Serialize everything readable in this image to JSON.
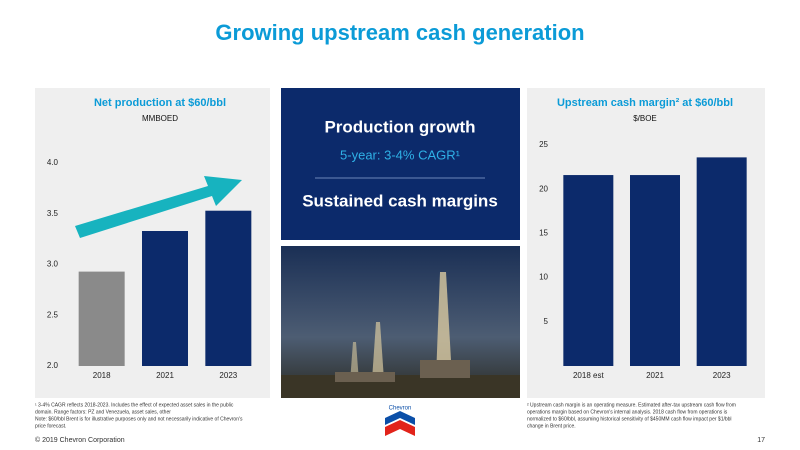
{
  "title": "Growing upstream cash generation",
  "chart_data": [
    {
      "type": "bar",
      "title": "Net production at $60/bbl",
      "subtitle": "MMBOED",
      "categories": [
        "2018",
        "2021",
        "2023"
      ],
      "values": [
        2.93,
        3.33,
        3.53
      ],
      "colors": [
        "#8a8a8a",
        "#0c2a6b",
        "#0c2a6b"
      ],
      "ylim": [
        2.0,
        4.0
      ],
      "yticks": [
        {
          "value": 2,
          "label": "2.0"
        },
        2.5,
        {
          "value": 3,
          "label": "3.0"
        },
        3.5,
        {
          "value": 4,
          "label": "4.0"
        }
      ]
    },
    {
      "type": "bar",
      "title": "Upstream cash margin² at $60/bbl",
      "subtitle": "$/BOE",
      "categories": [
        "2018 est",
        "2021",
        "2023"
      ],
      "values": [
        21.6,
        21.6,
        23.6
      ],
      "colors": [
        "#0c2a6b",
        "#0c2a6b",
        "#0c2a6b"
      ],
      "ylim": [
        0,
        25
      ],
      "yticks": [
        5,
        10,
        15,
        20,
        25
      ]
    }
  ],
  "center_panel": {
    "heading": "Production growth",
    "detail": "5-year: 3-4% CAGR¹",
    "heading2": "Sustained cash margins"
  },
  "footnotes_left": [
    "¹ 3-4% CAGR reflects 2018-2023.  Includes the effect of expected asset sales in the public",
    "domain.  Range factors: PZ and Venezuela, asset sales, other",
    "Note: $60/bbl Brent is for illustrative purposes only and not necessarily indicative of Chevron's",
    "price forecast."
  ],
  "footnotes_right": [
    "² Upstream cash margin is an operating measure.  Estimated after-tax upstream cash flow from",
    "operations margin based on Chevron's internal analysis. 2018 cash flow from operations is",
    "normalized to $60/bbl, assuming historical sensitivity of $450MM cash flow impact per $1/bbl",
    "change in Brent price."
  ],
  "logo": "Chevron",
  "footer": {
    "copyright": "© 2019 Chevron Corporation",
    "page": "17"
  }
}
